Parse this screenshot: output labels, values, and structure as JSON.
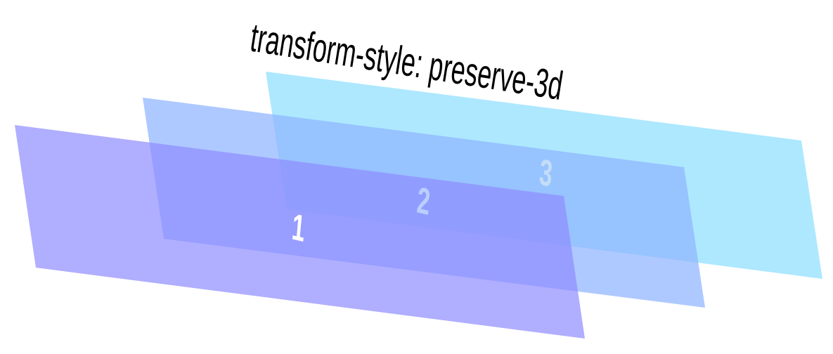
{
  "title": "transform-style: preserve-3d",
  "planes": [
    {
      "label": "1",
      "fill": "#8f8cff",
      "label_color": "#ffffff"
    },
    {
      "label": "2",
      "fill": "#8fb4ff",
      "label_color": "#b9d0ff"
    },
    {
      "label": "3",
      "fill": "#96e2ff",
      "label_color": "#c3ddf7"
    }
  ],
  "colors": {
    "background": "#ffffff",
    "text": "#000000"
  }
}
